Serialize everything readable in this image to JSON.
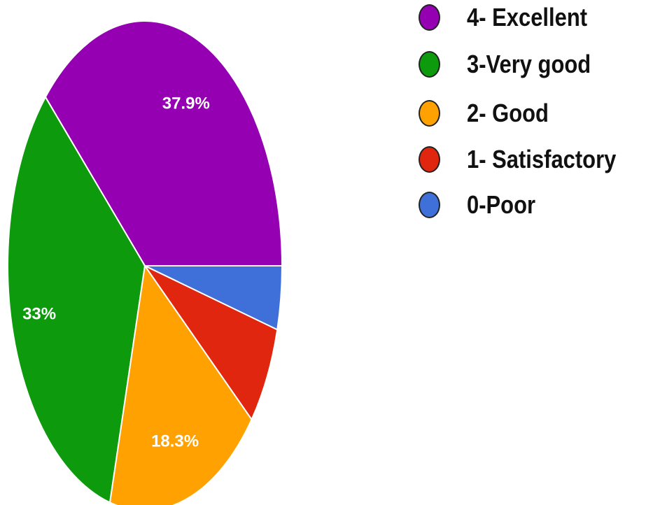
{
  "chart_data": {
    "type": "pie",
    "slices": [
      {
        "name": "4- Excellent",
        "value": 37.9,
        "label": "37.9%",
        "color": "#9400b2"
      },
      {
        "name": "3-Very good",
        "value": 33,
        "label": "33%",
        "color": "#0d9a0d"
      },
      {
        "name": "2- Good",
        "value": 18.3,
        "label": "18.3%",
        "color": "#ffa100"
      },
      {
        "name": "1- Satisfactory",
        "value": 6.6,
        "label": "",
        "color": "#e0260e"
      },
      {
        "name": "0-Poor",
        "value": 4.2,
        "label": "",
        "color": "#3f6fd8"
      }
    ],
    "legend_position": "right",
    "start": "3 o'clock, counter-clockwise"
  }
}
